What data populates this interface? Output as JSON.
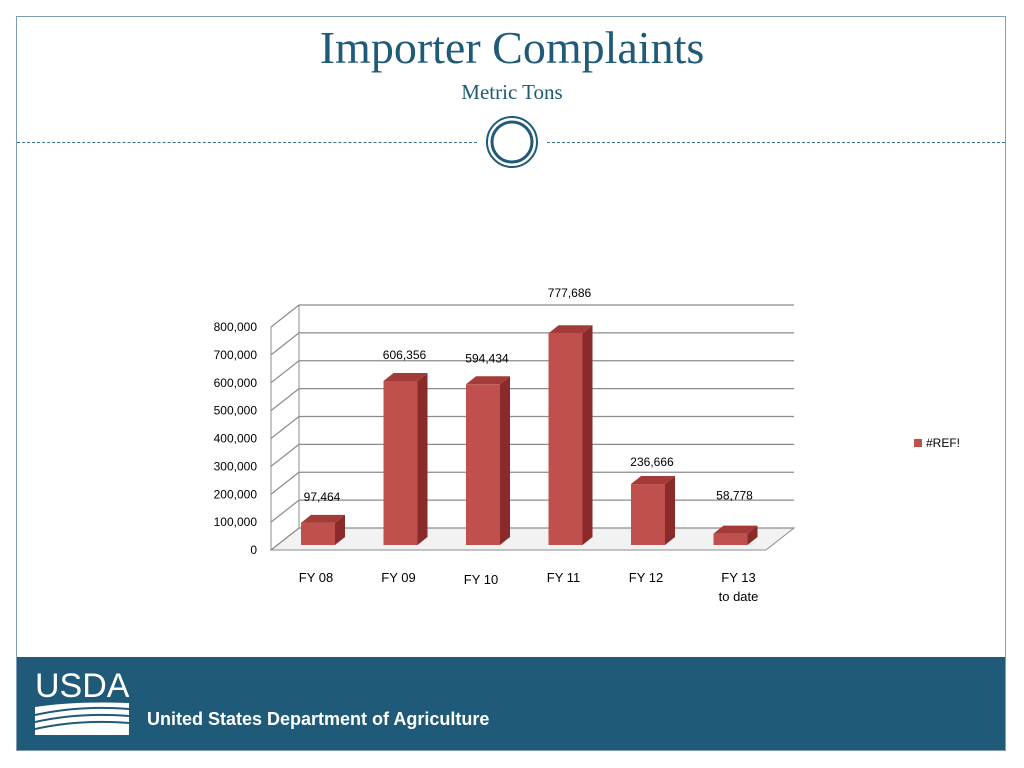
{
  "slide": {
    "title": "Importer Complaints",
    "subtitle": "Metric Tons"
  },
  "footer": {
    "logo_text": "USDA",
    "department": "United States Department of Agriculture"
  },
  "colors": {
    "accent": "#1f5a78",
    "bar_front": "#c0504d",
    "bar_side": "#8b2b29",
    "bar_top": "#a33b38"
  },
  "chart_data": {
    "type": "bar",
    "categories": [
      "FY 08",
      "FY 09",
      "FY 10",
      "FY 11",
      "FY 12",
      "FY 13 to date"
    ],
    "category_lines": [
      [
        "FY 08"
      ],
      [
        "FY 09"
      ],
      [
        "FY 10"
      ],
      [
        "FY 11"
      ],
      [
        "FY 12"
      ],
      [
        "FY 13",
        "to date"
      ]
    ],
    "series": [
      {
        "name": "#REF!",
        "values": [
          97464,
          606356,
          594434,
          777686,
          236666,
          58778
        ]
      }
    ],
    "data_labels": [
      "97,464",
      "606,356",
      "594,434",
      "777,686",
      "236,666",
      "58,778"
    ],
    "yticks": [
      "0",
      "100,000",
      "200,000",
      "300,000",
      "400,000",
      "500,000",
      "600,000",
      "700,000",
      "800,000"
    ],
    "ylim": [
      0,
      800000
    ],
    "legend_position": "right",
    "grid": true,
    "style": "3d-column"
  }
}
